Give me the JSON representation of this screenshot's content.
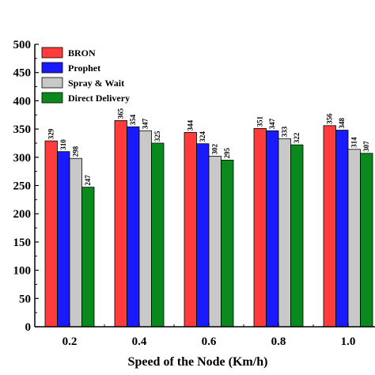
{
  "chart_data": {
    "type": "bar",
    "title": "",
    "xlabel": "Speed of the Node (Km/h)",
    "ylabel": "",
    "categories": [
      "0.2",
      "0.4",
      "0.6",
      "0.8",
      "1.0"
    ],
    "ylim": [
      0,
      500
    ],
    "yticks": [
      "0",
      "50",
      "100",
      "150",
      "200",
      "250",
      "300",
      "350",
      "400",
      "450",
      "500"
    ],
    "grid": false,
    "legend_position": "top-left",
    "series": [
      {
        "name": "BRON",
        "color": "#ff3b3b",
        "values": [
          329,
          365,
          344,
          351,
          356
        ]
      },
      {
        "name": "Prophet",
        "color": "#1a1aff",
        "values": [
          310,
          354,
          324,
          347,
          348
        ]
      },
      {
        "name": "Spray & Wait",
        "color": "#c8c8c8",
        "values": [
          298,
          347,
          302,
          333,
          314
        ]
      },
      {
        "name": "Direct Delivery",
        "color": "#0a8a1e",
        "values": [
          247,
          325,
          295,
          322,
          307
        ]
      }
    ]
  }
}
